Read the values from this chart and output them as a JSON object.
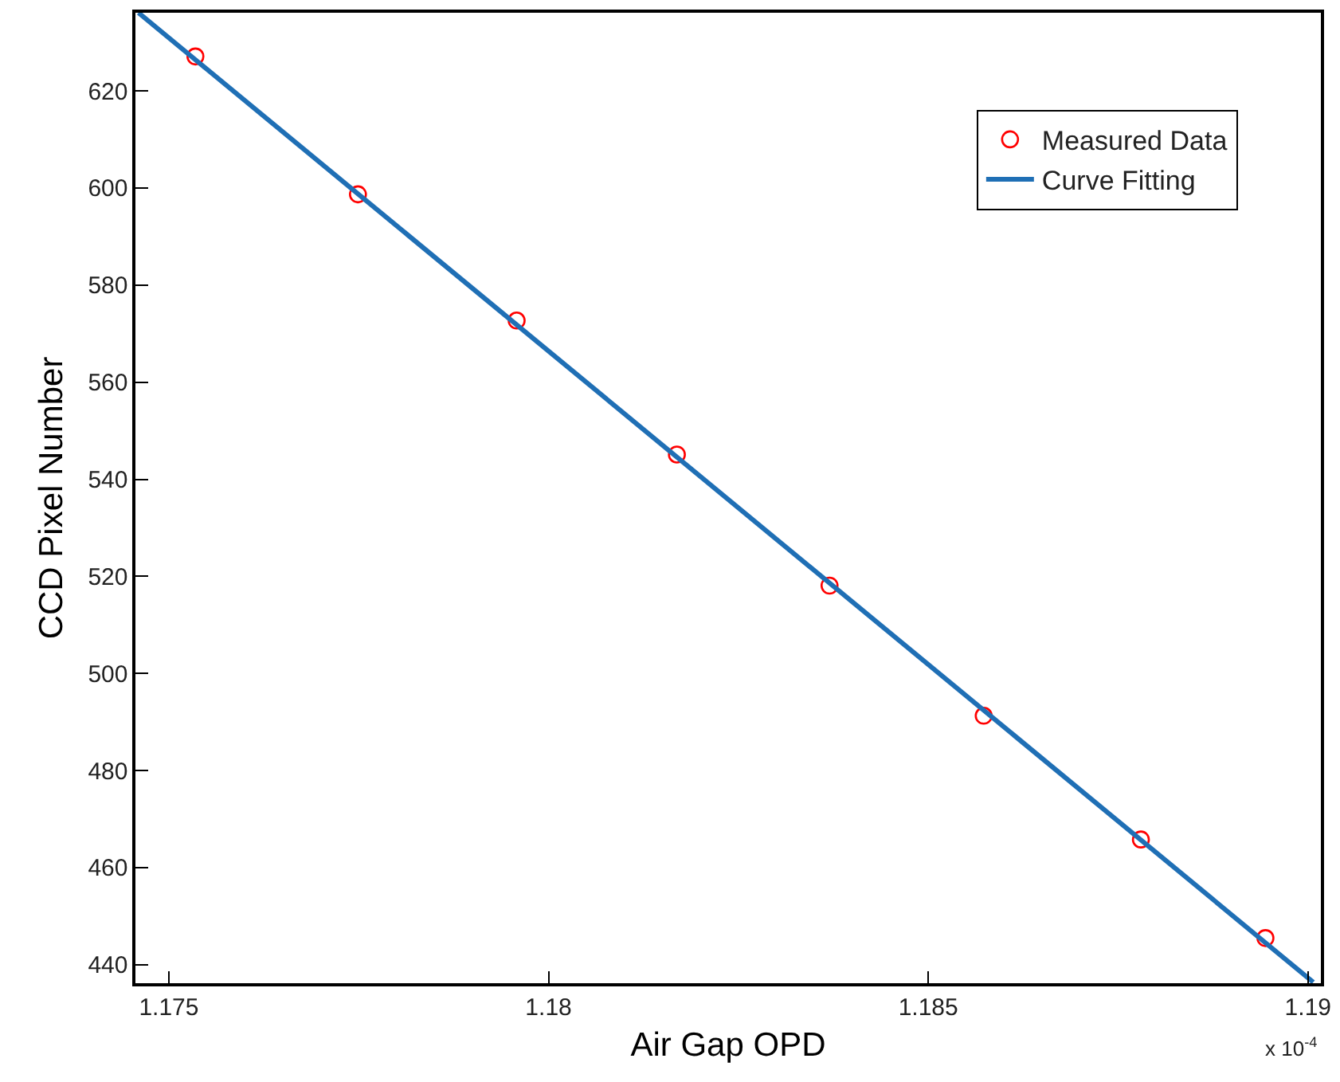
{
  "chart_data": {
    "type": "scatter",
    "xlabel": "Air Gap OPD",
    "ylabel": "CCD Pixel Number",
    "x": [
      1.17535,
      1.17749,
      1.17958,
      1.18169,
      1.1837,
      1.18573,
      1.1878,
      1.18944
    ],
    "series": [
      {
        "name": "Measured Data",
        "color": "#ff0000",
        "marker": "circle",
        "values": [
          627.1,
          598.7,
          572.7,
          545.1,
          518.1,
          491.3,
          465.8,
          445.5
        ]
      },
      {
        "name": "Curve Fitting",
        "type": "line",
        "color": "#1f6fb5",
        "marker": "none",
        "line_style": "solid",
        "x": [
          1.1746,
          1.19007
        ],
        "values": [
          636.1,
          436.4
        ]
      }
    ],
    "xlim": [
      1.17456,
      1.19017
    ],
    "ylim": [
      436.2,
      636.1
    ],
    "xticks": [
      1.175,
      1.18,
      1.185,
      1.19
    ],
    "yticks": [
      440,
      460,
      480,
      500,
      520,
      540,
      560,
      580,
      600,
      620
    ],
    "annotations": [
      "x 10$^{-4}$"
    ],
    "legend": "top right"
  }
}
